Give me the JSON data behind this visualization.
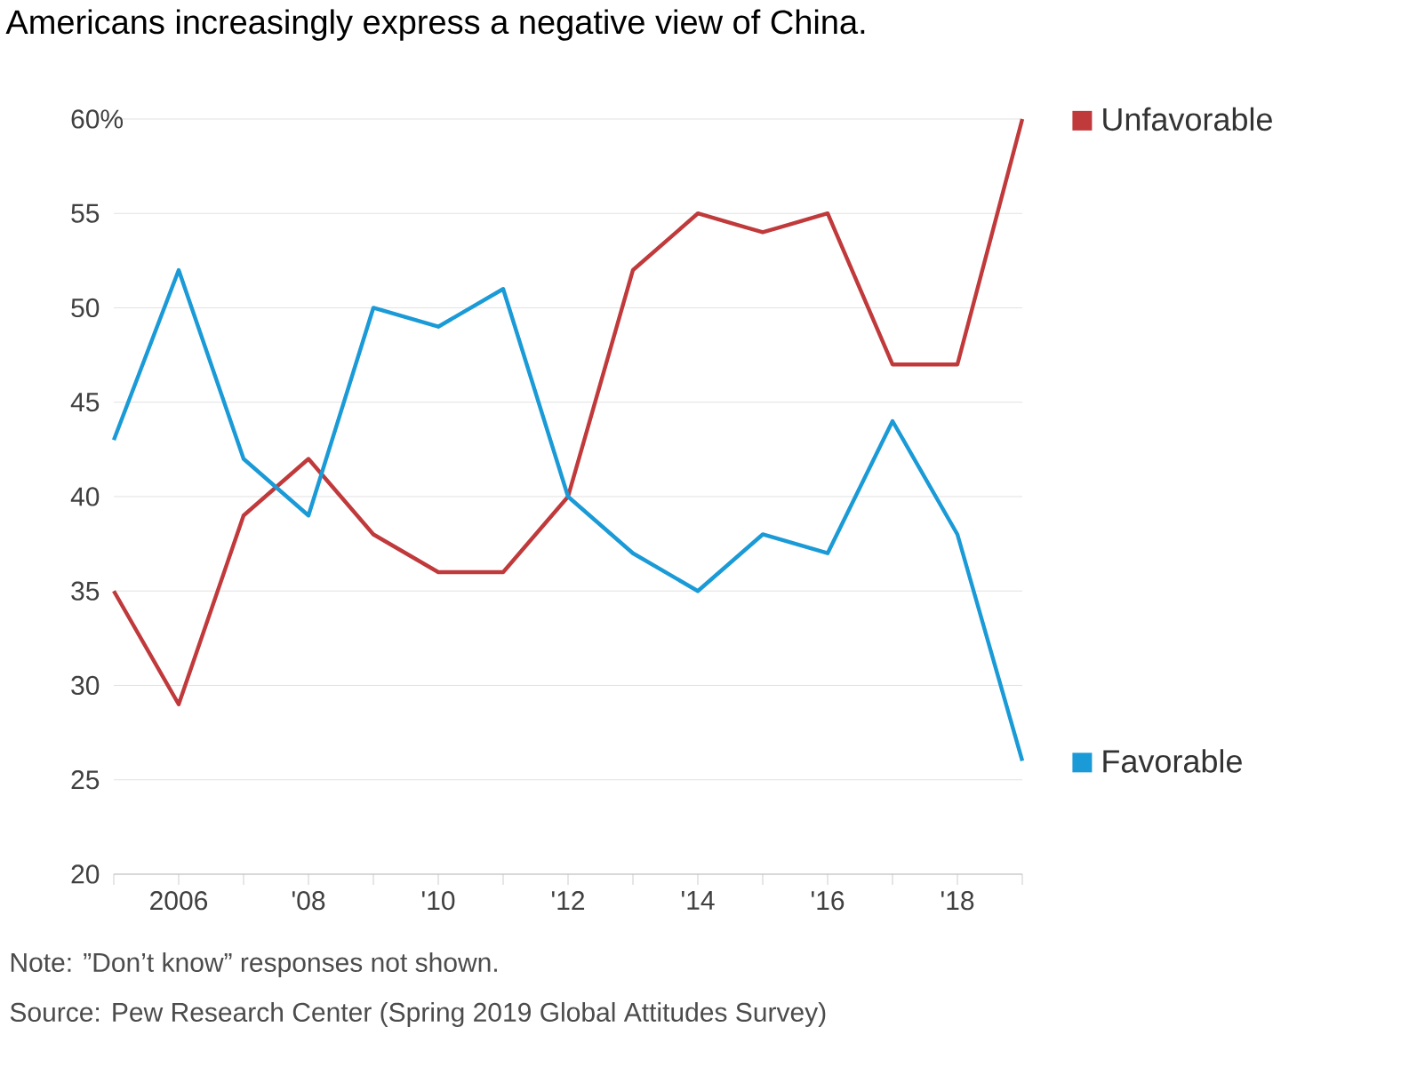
{
  "chart_data": {
    "type": "line",
    "title": "Americans increasingly express a negative view of China.",
    "x": [
      2005,
      2006,
      2007,
      2008,
      2009,
      2010,
      2011,
      2012,
      2013,
      2014,
      2015,
      2016,
      2017,
      2018,
      2019
    ],
    "series": [
      {
        "name": "Unfavorable",
        "color": "#c0393b",
        "values": [
          35,
          29,
          39,
          42,
          38,
          36,
          36,
          40,
          52,
          55,
          54,
          55,
          47,
          47,
          60
        ]
      },
      {
        "name": "Favorable",
        "color": "#1a9ad6",
        "values": [
          43,
          52,
          42,
          39,
          50,
          49,
          51,
          40,
          37,
          35,
          38,
          37,
          44,
          38,
          26
        ]
      }
    ],
    "xlim": [
      2005,
      2019
    ],
    "xticks": [
      {
        "value": 2005,
        "label": null
      },
      2006,
      {
        "value": 2007,
        "label": null
      },
      {
        "value": 2008,
        "label": "'08"
      },
      {
        "value": 2009,
        "label": null
      },
      {
        "value": 2010,
        "label": "'10"
      },
      {
        "value": 2011,
        "label": null
      },
      {
        "value": 2012,
        "label": "'12"
      },
      {
        "value": 2013,
        "label": null
      },
      {
        "value": 2014,
        "label": "'14"
      },
      {
        "value": 2015,
        "label": null
      },
      {
        "value": 2016,
        "label": "'16"
      },
      {
        "value": 2017,
        "label": null
      },
      {
        "value": 2018,
        "label": "'18"
      },
      {
        "value": 2019,
        "label": null
      }
    ],
    "ylim": [
      20,
      60
    ],
    "yticks": [
      20,
      25,
      30,
      35,
      40,
      45,
      50,
      55,
      {
        "value": 60,
        "label": "60%"
      }
    ],
    "grid": "y",
    "legend": "right",
    "marker": "none",
    "line_style": "solid",
    "annotations": [
      "Note: ”Don’t know” responses not shown.",
      "Source: Pew Research Center (Spring 2019 Global Attitudes Survey)"
    ]
  }
}
